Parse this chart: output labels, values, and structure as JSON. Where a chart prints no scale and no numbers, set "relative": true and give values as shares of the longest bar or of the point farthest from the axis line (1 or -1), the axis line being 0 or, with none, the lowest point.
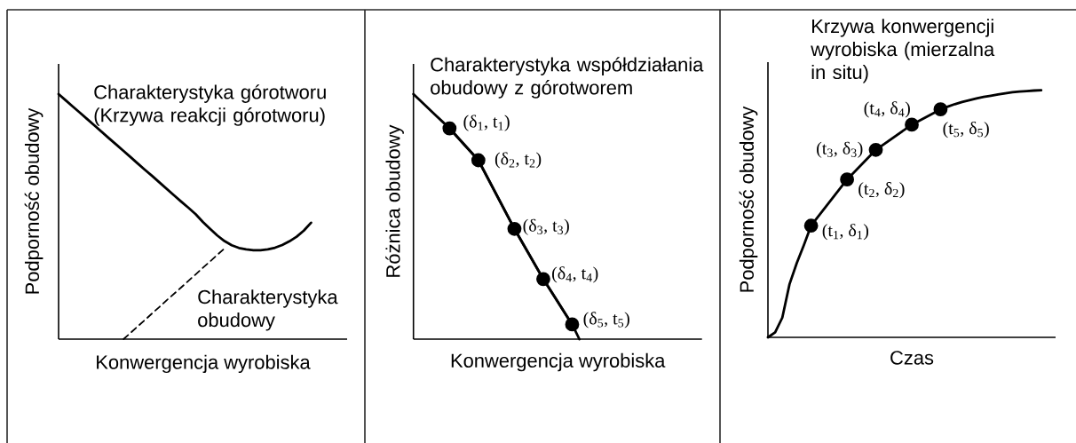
{
  "chart_data": [
    {
      "type": "line",
      "relative": true,
      "xlabel": "Konwergencja wyrobiska",
      "ylabel": "Podporność obudowy",
      "categories": [
        null,
        null,
        null,
        null,
        null,
        null,
        null,
        null,
        null,
        null,
        null,
        null,
        null,
        null,
        null,
        null,
        null,
        null,
        null,
        null,
        null,
        null,
        null,
        null,
        null,
        null,
        null,
        null,
        null,
        null,
        null,
        null,
        null,
        null,
        null,
        null,
        null,
        null,
        null,
        null,
        null
      ],
      "series": [
        {
          "name": "Charakterystyka górotworu (Krzywa reakcji górotworu)",
          "color": "#000000",
          "line_style": "solid",
          "values": [
            1.0,
            0.974,
            0.948,
            0.923,
            0.897,
            0.871,
            0.845,
            0.819,
            0.794,
            0.768,
            0.742,
            0.716,
            0.69,
            0.665,
            0.639,
            0.613,
            0.587,
            0.561,
            0.536,
            0.51,
            0.478,
            0.45,
            0.423,
            0.4,
            0.383,
            0.372,
            0.366,
            0.363,
            0.363,
            0.366,
            0.373,
            0.384,
            0.399,
            0.418,
            0.443,
            0.475,
            null,
            null,
            null,
            null,
            null
          ]
        },
        {
          "name": "Charakterystyka obudowy",
          "color": "#000000",
          "line_style": "dashed",
          "values": [
            null,
            null,
            null,
            null,
            null,
            null,
            null,
            null,
            null,
            0.0,
            0.026,
            0.053,
            0.079,
            0.106,
            0.132,
            0.159,
            0.185,
            0.211,
            0.238,
            0.264,
            0.291,
            0.317,
            0.344,
            0.37,
            null,
            null,
            null,
            null,
            null,
            null,
            null,
            null,
            null,
            null,
            null,
            null,
            null,
            null,
            null,
            null,
            null
          ]
        }
      ]
    },
    {
      "type": "line",
      "relative": true,
      "xlabel": "Konwergencja wyrobiska",
      "ylabel": "Różnica obudowy",
      "categories": [
        null,
        null,
        null,
        null,
        null,
        null,
        null,
        null,
        null,
        null,
        null,
        null,
        null,
        null,
        null,
        null,
        null,
        null,
        null,
        null,
        null,
        null,
        null,
        null,
        null,
        null,
        null,
        null,
        null,
        null,
        null,
        null,
        null,
        null,
        null,
        null,
        null,
        null,
        null,
        null,
        null
      ],
      "series": [
        {
          "marker": "circle",
          "color": "#000000",
          "line_style": "solid",
          "values": [
            null,
            null,
            null,
            null,
            null,
            0.86,
            null,
            null,
            null,
            0.73,
            null,
            null,
            null,
            null,
            0.45,
            null,
            null,
            null,
            0.245,
            null,
            null,
            null,
            0.06,
            null,
            null,
            null,
            null,
            null,
            null,
            null,
            null,
            null,
            null,
            null,
            null,
            null,
            null,
            null,
            null,
            null,
            null
          ]
        },
        {
          "name": "Charakterystyka współdziałania obudowy z górotworem",
          "color": "#000000",
          "line_style": "solid",
          "values": [
            1.0,
            0.972,
            0.944,
            0.916,
            0.888,
            0.86,
            0.828,
            0.795,
            0.763,
            0.73,
            0.674,
            0.618,
            0.562,
            0.506,
            0.45,
            0.399,
            0.348,
            0.296,
            0.245,
            0.199,
            0.153,
            0.106,
            0.06,
            0.0,
            null,
            null,
            null,
            null,
            null,
            null,
            null,
            null,
            null,
            null,
            null,
            null,
            null,
            null,
            null,
            null,
            null
          ]
        }
      ],
      "annotations": [
        "(δ$_{1}$, t$_{1}$)",
        "(δ$_{2}$, t$_{2}$)",
        "(δ$_{3}$, t$_{3}$)",
        "(δ$_{4}$, t$_{4}$)",
        "(δ$_{5}$, t$_{5}$)"
      ]
    },
    {
      "type": "line",
      "relative": true,
      "xlabel": "Czas",
      "ylabel": "Podporność obudowy",
      "categories": [
        null,
        null,
        null,
        null,
        null,
        null,
        null,
        null,
        null,
        null,
        null,
        null,
        null,
        null,
        null,
        null,
        null,
        null,
        null,
        null,
        null,
        null,
        null,
        null,
        null,
        null,
        null,
        null,
        null,
        null,
        null,
        null,
        null,
        null,
        null,
        null,
        null,
        null,
        null,
        null,
        null
      ],
      "series": [
        {
          "name": "Krzywa konwergencji wyrobiska (mierzalna in situ)",
          "color": "#000000",
          "line_style": "solid",
          "values": [
            0.0,
            0.02,
            0.08,
            0.215,
            0.3,
            0.374,
            0.452,
            null,
            null,
            null,
            null,
            null,
            null,
            null,
            null,
            null,
            null,
            null,
            null,
            null,
            null,
            null,
            null,
            null,
            0.923,
            0.934,
            0.944,
            0.953,
            0.96,
            0.967,
            0.973,
            0.978,
            0.983,
            0.988,
            0.992,
            0.995,
            0.997,
            0.999,
            1.0,
            null,
            null
          ]
        },
        {
          "marker": "circle",
          "color": "#000000",
          "line_style": "solid",
          "values": [
            null,
            null,
            null,
            null,
            null,
            null,
            0.452,
            null,
            null,
            null,
            null,
            0.639,
            null,
            null,
            null,
            0.759,
            null,
            null,
            null,
            null,
            0.861,
            null,
            null,
            null,
            0.923,
            null,
            null,
            null,
            null,
            null,
            null,
            null,
            null,
            null,
            null,
            null,
            null,
            null,
            null,
            null,
            null
          ]
        }
      ],
      "annotations": [
        "(t$_{1}$, δ$_{1}$)",
        "(t$_{2}$, δ$_{2}$)",
        "(t$_{3}$, δ$_{3}$)",
        "(t$_{4}$, δ$_{4}$)",
        "(t$_{5}$, δ$_{5}$)"
      ]
    }
  ]
}
